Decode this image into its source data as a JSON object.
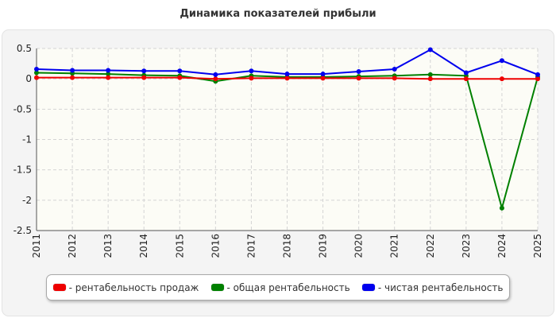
{
  "chart_data": {
    "type": "line",
    "title": "Динамика показателей прибыли",
    "categories": [
      "2011",
      "2012",
      "2013",
      "2014",
      "2015",
      "2016",
      "2017",
      "2018",
      "2019",
      "2020",
      "2021",
      "2022",
      "2023",
      "2024",
      "2025"
    ],
    "ylim": [
      -2.5,
      0.5
    ],
    "yticks": [
      0.5,
      0,
      -0.5,
      -1,
      -1.5,
      -2,
      -2.5
    ],
    "ytick_labels": [
      "0.5",
      "0",
      "-0.5",
      "-1",
      "-1.5",
      "-2",
      "-2.5"
    ],
    "grid": true,
    "legend_position": "bottom",
    "series": [
      {
        "name": "- рентабельность продаж",
        "color": "#ee0000",
        "values": [
          0.02,
          0.02,
          0.02,
          0.02,
          0.02,
          0.0,
          0.01,
          0.01,
          0.01,
          0.01,
          0.01,
          0.0,
          0.0,
          0.0,
          0.0
        ]
      },
      {
        "name": "- общая рентабельность",
        "color": "#008000",
        "values": [
          0.1,
          0.09,
          0.08,
          0.06,
          0.05,
          -0.04,
          0.05,
          0.03,
          0.03,
          0.04,
          0.05,
          0.07,
          0.05,
          -2.13,
          0.03
        ]
      },
      {
        "name": "- чистая рентабельность",
        "color": "#0000ee",
        "values": [
          0.16,
          0.14,
          0.14,
          0.13,
          0.13,
          0.07,
          0.13,
          0.08,
          0.08,
          0.12,
          0.16,
          0.48,
          0.1,
          0.3,
          0.07
        ]
      }
    ],
    "overlap_color": "#808000"
  }
}
